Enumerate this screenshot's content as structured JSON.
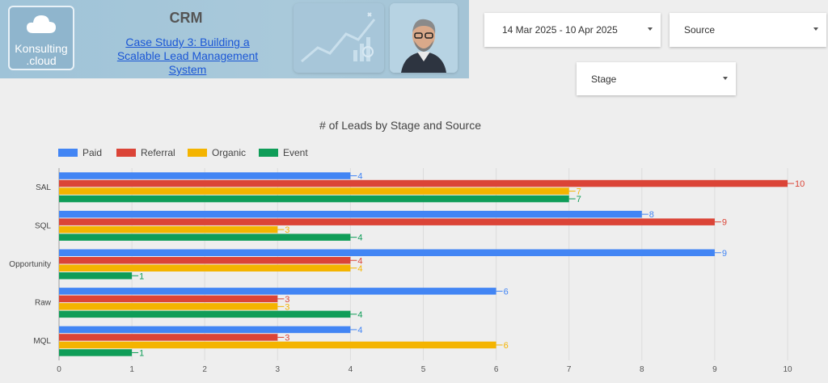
{
  "header": {
    "logo_line1": "Konsulting",
    "logo_line2": ".cloud",
    "title": "CRM",
    "case_link_line1": "Case Study 3: Building a",
    "case_link_line2": "Scalable Lead Management",
    "case_link_line3": "System"
  },
  "filters": {
    "date_range": "14 Mar 2025 - 10 Apr 2025",
    "source_label": "Source",
    "stage_label": "Stage"
  },
  "icons": {
    "logo": "cloud-icon",
    "dropdown": "chevron-down-icon",
    "analytics": "chart-trend-icon",
    "avatar": "person-avatar"
  },
  "colors": {
    "paid": "#4285f4",
    "referral": "#db4437",
    "organic": "#f4b400",
    "event": "#0f9d58"
  },
  "chart_data": {
    "type": "bar",
    "orientation": "horizontal",
    "title": "# of Leads by Stage and Source",
    "categories": [
      "SAL",
      "SQL",
      "Opportunity",
      "Raw",
      "MQL"
    ],
    "series": [
      {
        "name": "Paid",
        "values": [
          4,
          8,
          9,
          6,
          4
        ]
      },
      {
        "name": "Referral",
        "values": [
          10,
          9,
          4,
          3,
          3
        ]
      },
      {
        "name": "Organic",
        "values": [
          7,
          3,
          4,
          3,
          6
        ]
      },
      {
        "name": "Event",
        "values": [
          7,
          4,
          1,
          4,
          1
        ]
      }
    ],
    "xlim": [
      0,
      10
    ],
    "xticks": [
      0,
      1,
      2,
      3,
      4,
      5,
      6,
      7,
      8,
      9,
      10
    ],
    "xlabel": "",
    "ylabel": "",
    "legend_position": "top-left",
    "grid": true
  }
}
